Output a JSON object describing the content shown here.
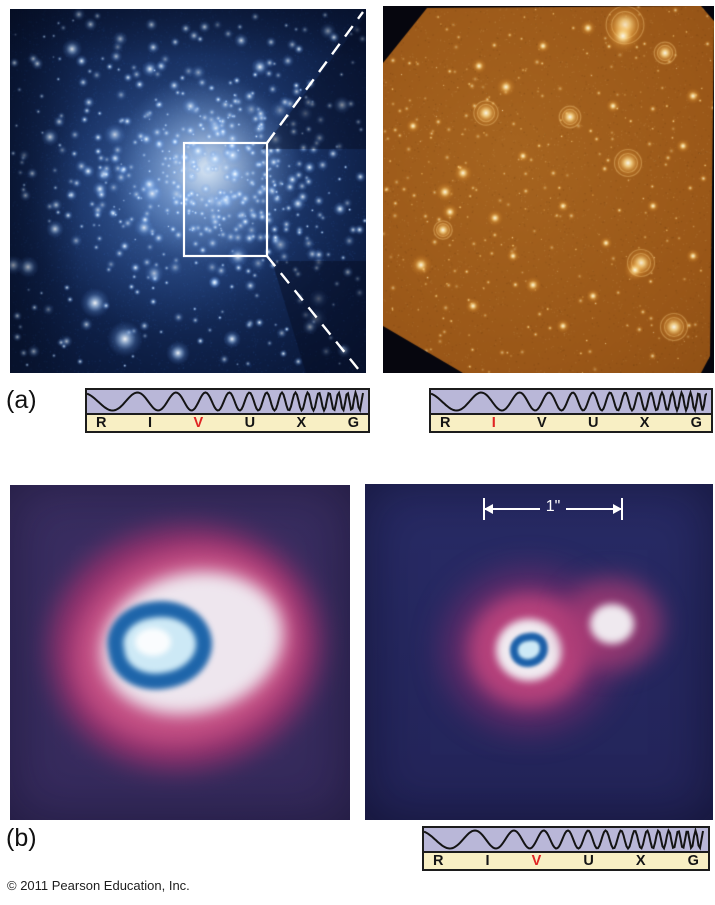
{
  "figure": {
    "panel_a_label": "(a)",
    "panel_b_label": "(b)",
    "copyright": "© 2011 Pearson Education, Inc.",
    "scale_bar_label": "1\"",
    "spectrum_letters": [
      "R",
      "I",
      "V",
      "U",
      "X",
      "G"
    ],
    "spectra": [
      {
        "id": "panel-a-left",
        "highlight": "V"
      },
      {
        "id": "panel-a-right",
        "highlight": "I"
      },
      {
        "id": "panel-b-right",
        "highlight": "V"
      }
    ],
    "colors": {
      "page": "#ffffff",
      "label_text": "#111111",
      "copyright_text": "#1d1d1d",
      "annotation": "#ffffff",
      "wave_band": "#b9b7d8",
      "letter_band": "#f8efc4",
      "bar_border": "#1c1c1c",
      "letter": "#151515",
      "highlight": "#e02423",
      "wave_line": "#141414",
      "blue_bg": "#0a1838",
      "blue_glow": "#cfe4ff",
      "orange_bg": "#9a5a1a",
      "orange_star": "#ffd878",
      "orange_corner": "#06060e",
      "purple_left_bg": "#3a2e62",
      "purple_right_bg": "#282b66",
      "blob_magenta": "#91306c",
      "blob_pink": "#c34e83",
      "blob_white": "#eee6ee",
      "blob_blue_ring": "#1e65aa",
      "blob_core": "#cde9f6"
    }
  }
}
